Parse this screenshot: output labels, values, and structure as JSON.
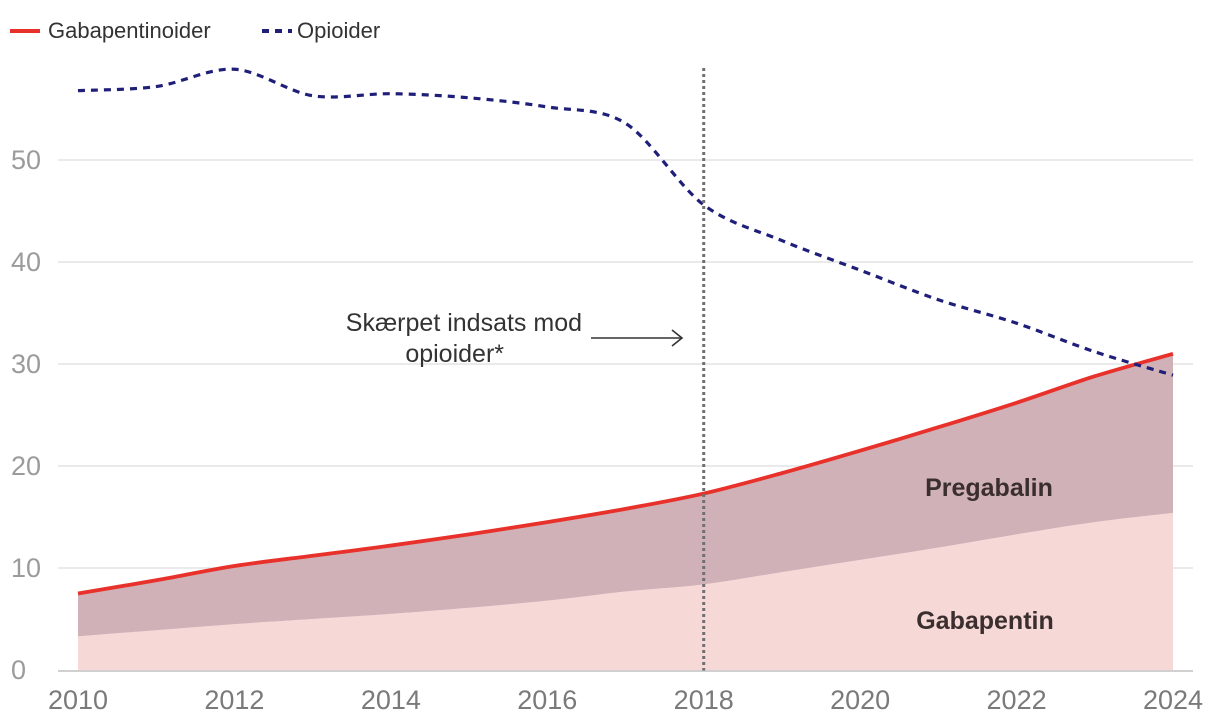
{
  "chart_data": {
    "type": "line",
    "x": [
      2010,
      2011,
      2012,
      2013,
      2014,
      2015,
      2016,
      2017,
      2018,
      2019,
      2020,
      2021,
      2022,
      2023,
      2024
    ],
    "ylim": [
      0,
      60
    ],
    "xlim": [
      2010,
      2024
    ],
    "yticks": [
      0,
      10,
      20,
      30,
      40,
      50
    ],
    "xticks": [
      2010,
      2012,
      2014,
      2016,
      2018,
      2020,
      2022,
      2024
    ],
    "grid": true,
    "legend_position": "top-left",
    "series": [
      {
        "name": "Gabapentinoider",
        "style": "solid",
        "color": "#e8312a",
        "values": [
          7.5,
          8.8,
          10.2,
          11.2,
          12.2,
          13.3,
          14.5,
          15.8,
          17.3,
          19.3,
          21.5,
          23.8,
          26.2,
          28.8,
          31.0
        ]
      },
      {
        "name": "Opioider",
        "style": "dashed",
        "color": "#1f1f7a",
        "values": [
          56.8,
          57.2,
          58.9,
          56.3,
          56.5,
          56.1,
          55.2,
          53.6,
          45.6,
          42.1,
          39.2,
          36.3,
          34.0,
          31.2,
          28.9
        ]
      }
    ],
    "areas": [
      {
        "name": "Gabapentin",
        "color": "#f6d8d7",
        "values": [
          3.3,
          3.9,
          4.5,
          5.0,
          5.5,
          6.1,
          6.8,
          7.7,
          8.4,
          9.6,
          10.8,
          12.0,
          13.3,
          14.5,
          15.4
        ]
      },
      {
        "name": "Pregabalin",
        "color": "#cfb1b7",
        "values": [
          4.2,
          4.9,
          5.7,
          6.2,
          6.7,
          7.2,
          7.7,
          8.1,
          8.9,
          9.7,
          10.7,
          11.8,
          12.9,
          14.3,
          15.6
        ]
      }
    ],
    "annotation": {
      "text_line1": "Skærpet indsats mod",
      "text_line2": "opioider*",
      "x": 2018
    }
  }
}
